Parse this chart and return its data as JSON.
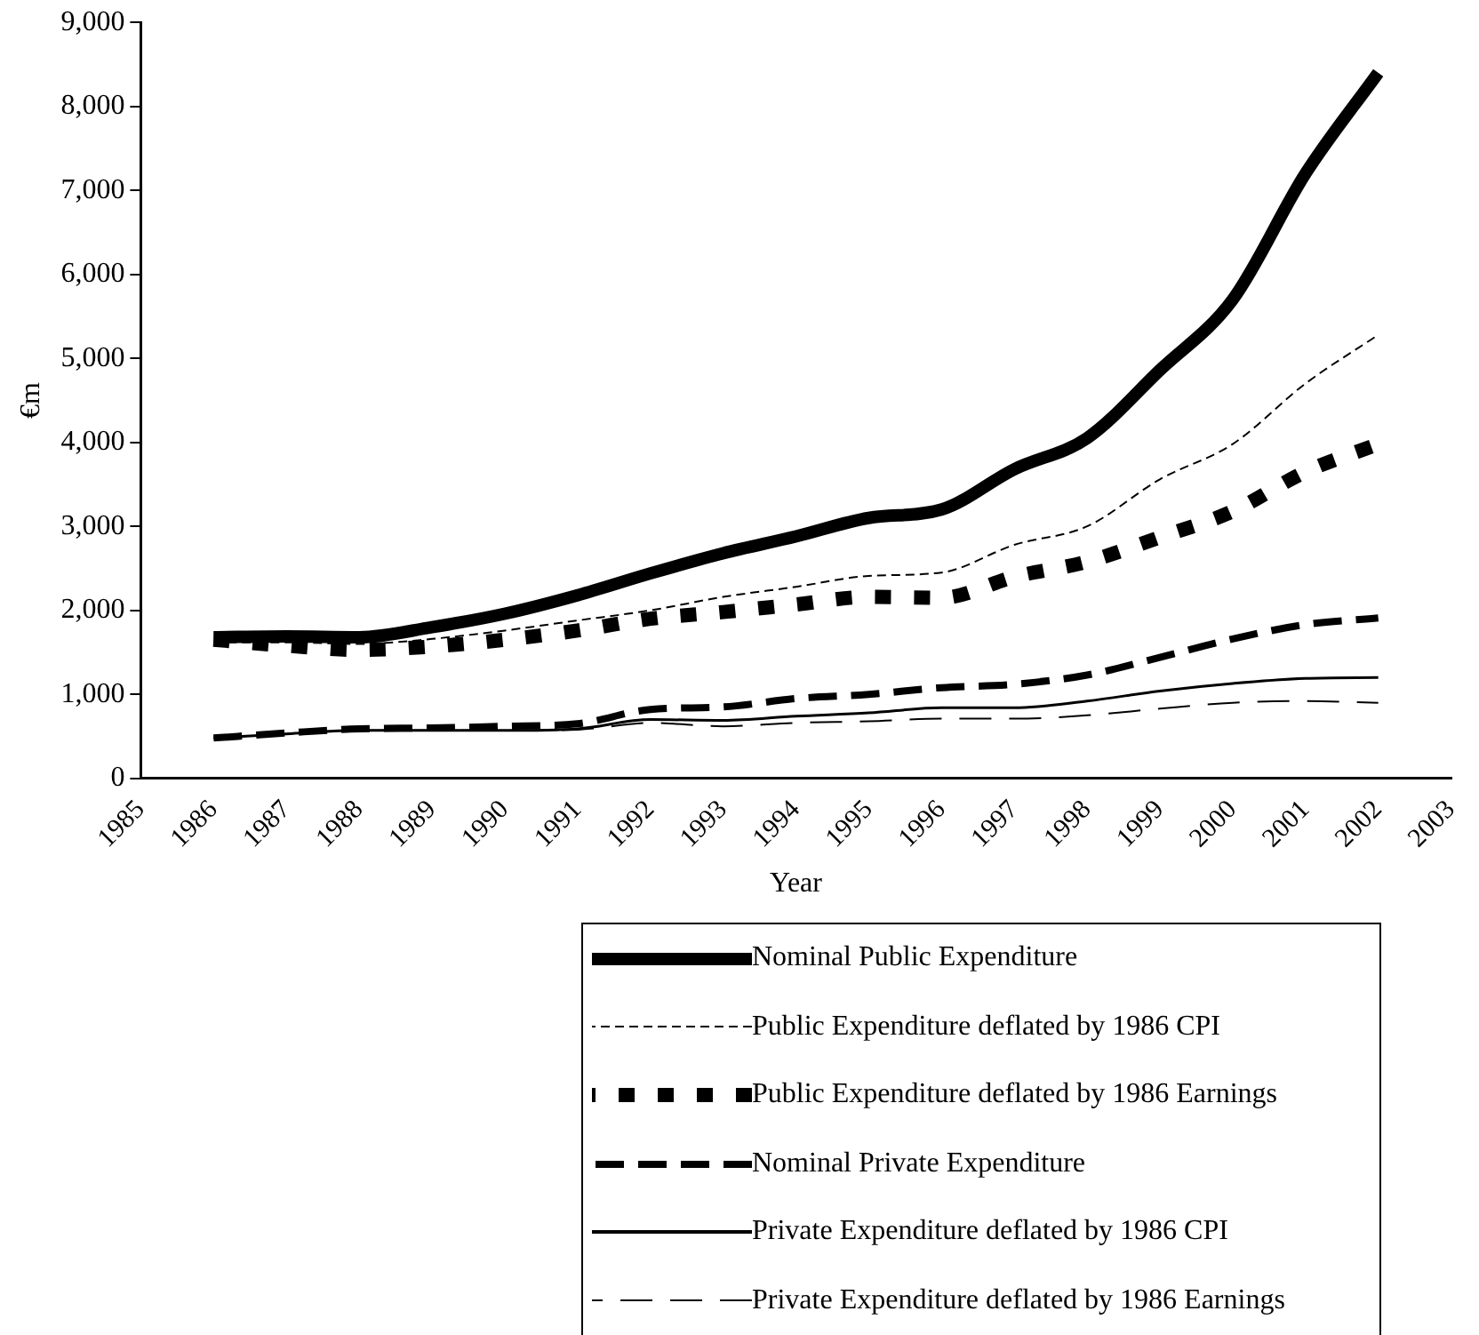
{
  "chart_data": {
    "type": "line",
    "xlabel": "Year",
    "ylabel": "€m",
    "x": [
      1986,
      1987,
      1988,
      1989,
      1990,
      1991,
      1992,
      1993,
      1994,
      1995,
      1996,
      1997,
      1998,
      1999,
      2000,
      2001,
      2002
    ],
    "series": [
      {
        "name": "Nominal Public Expenditure",
        "color": "#000000",
        "line_style": "solid",
        "values": [
          1680,
          1690,
          1680,
          1800,
          1960,
          2180,
          2440,
          2680,
          2880,
          3100,
          3200,
          3680,
          4050,
          4860,
          5700,
          7200,
          8400
        ]
      },
      {
        "name": "Public Expenditure deflated by 1986 CPI",
        "color": "#000000",
        "line_style": "dashed",
        "values": [
          1620,
          1620,
          1600,
          1660,
          1760,
          1880,
          2000,
          2160,
          2280,
          2410,
          2450,
          2780,
          3000,
          3560,
          3980,
          4700,
          5280
        ]
      },
      {
        "name": "Public Expenditure deflated by 1986 Earnings",
        "color": "#000000",
        "line_style": "dotted",
        "values": [
          1650,
          1580,
          1530,
          1570,
          1650,
          1760,
          1900,
          1980,
          2070,
          2160,
          2150,
          2400,
          2580,
          2870,
          3180,
          3650,
          3980
        ]
      },
      {
        "name": "Nominal Private Expenditure",
        "color": "#000000",
        "line_style": "dashed",
        "values": [
          480,
          540,
          590,
          600,
          620,
          650,
          820,
          850,
          950,
          1000,
          1080,
          1120,
          1230,
          1440,
          1660,
          1830,
          1910
        ]
      },
      {
        "name": "Private Expenditure deflated by 1986 CPI",
        "color": "#000000",
        "line_style": "solid",
        "values": [
          480,
          530,
          570,
          570,
          570,
          590,
          700,
          690,
          740,
          780,
          840,
          840,
          920,
          1040,
          1130,
          1190,
          1200
        ]
      },
      {
        "name": "Private Expenditure deflated by 1986 Earnings",
        "color": "#000000",
        "line_style": "dashed",
        "values": [
          480,
          530,
          570,
          570,
          570,
          580,
          660,
          620,
          660,
          680,
          710,
          710,
          750,
          830,
          900,
          920,
          900
        ]
      }
    ],
    "xlim": [
      1985,
      2003
    ],
    "xticks": [
      1985,
      1986,
      1987,
      1988,
      1989,
      1990,
      1991,
      1992,
      1993,
      1994,
      1995,
      1996,
      1997,
      1998,
      1999,
      2000,
      2001,
      2002,
      2003
    ],
    "ylim": [
      0,
      9000
    ],
    "yticks": [
      0,
      {
        "value": 1000,
        "label": "1,000"
      },
      {
        "value": 2000,
        "label": "2,000"
      },
      {
        "value": 3000,
        "label": "3,000"
      },
      {
        "value": 4000,
        "label": "4,000"
      },
      {
        "value": 5000,
        "label": "5,000"
      },
      {
        "value": 6000,
        "label": "6,000"
      },
      {
        "value": 7000,
        "label": "7,000"
      },
      {
        "value": 8000,
        "label": "8,000"
      },
      {
        "value": 9000,
        "label": "9,000"
      }
    ],
    "grid": false,
    "legend": "bottom",
    "marker": "none"
  }
}
